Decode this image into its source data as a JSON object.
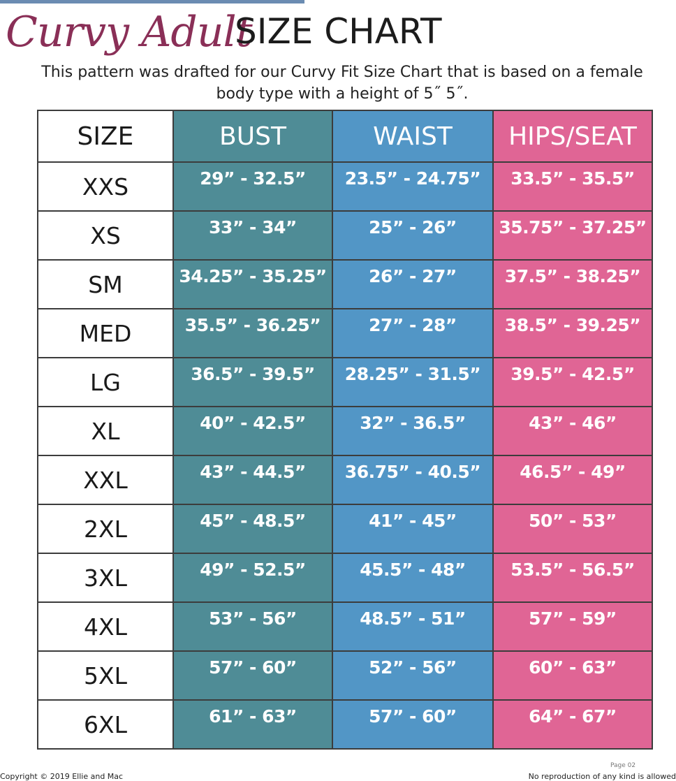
{
  "header": {
    "script_title": "Curvy Adult",
    "title": "SIZE CHART",
    "subtitle_line1": "This pattern was drafted for our Curvy Fit Size Chart that is based on a female",
    "subtitle_line2": "body type with a height of 5˝ 5˝."
  },
  "table": {
    "columns": [
      "SIZE",
      "BUST",
      "WAIST",
      "HIPS/SEAT"
    ],
    "rows": [
      [
        "XXS",
        "29” - 32.5”",
        "23.5” - 24.75”",
        "33.5” - 35.5”"
      ],
      [
        "XS",
        "33” - 34”",
        "25” - 26”",
        "35.75” - 37.25”"
      ],
      [
        "SM",
        "34.25” - 35.25”",
        "26” - 27”",
        "37.5” - 38.25”"
      ],
      [
        "MED",
        "35.5” - 36.25”",
        "27” - 28”",
        "38.5” - 39.25”"
      ],
      [
        "LG",
        "36.5” - 39.5”",
        "28.25” - 31.5”",
        "39.5” - 42.5”"
      ],
      [
        "XL",
        "40” - 42.5”",
        "32” - 36.5”",
        "43” - 46”"
      ],
      [
        "XXL",
        "43” - 44.5”",
        "36.75” - 40.5”",
        "46.5” - 49”"
      ],
      [
        "2XL",
        "45” - 48.5”",
        "41” - 45”",
        "50” - 53”"
      ],
      [
        "3XL",
        "49” - 52.5”",
        "45.5” - 48”",
        "53.5” - 56.5”"
      ],
      [
        "4XL",
        "53” - 56”",
        "48.5” - 51”",
        "57” - 59”"
      ],
      [
        "5XL",
        "57” - 60”",
        "52” - 56”",
        "60” - 63”"
      ],
      [
        "6XL",
        "61” - 63”",
        "57” - 60”",
        "64” - 67”"
      ]
    ]
  },
  "footer": {
    "left": "Copyright © 2019 Ellie and Mac",
    "right": "No reproduction of any kind is allowed",
    "page": "Page 02"
  },
  "colors": {
    "script_title": "#8a2f57",
    "bust": "#4f8c96",
    "waist": "#5296c6",
    "hips": "#e06595",
    "top_bar": "#6b8cb2"
  }
}
